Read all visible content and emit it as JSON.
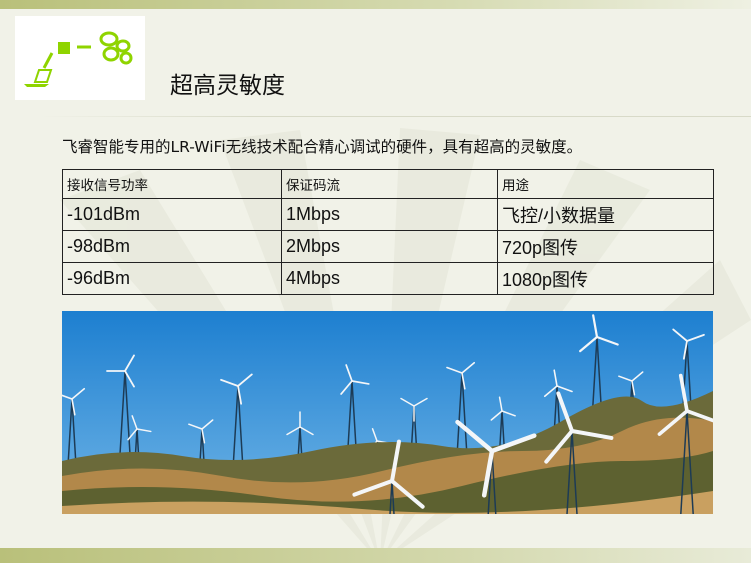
{
  "slide": {
    "title": "超高灵敏度",
    "intro": "飞睿智能专用的LR-WiFi无线技术配合精心调试的硬件，具有超高的灵敏度。",
    "logo_icon": "laptop-wireless-network-logo",
    "accent_color": "#8fd400"
  },
  "table": {
    "headers": [
      "接收信号功率",
      "保证码流",
      "用途"
    ],
    "rows": [
      [
        "-101dBm",
        "1Mbps",
        "飞控/小数据量"
      ],
      [
        "-98dBm",
        "2Mbps",
        "720p图传"
      ],
      [
        "-96dBm",
        "4Mbps",
        "1080p图传"
      ]
    ]
  },
  "photo": {
    "subject": "wind-turbines-photo"
  }
}
